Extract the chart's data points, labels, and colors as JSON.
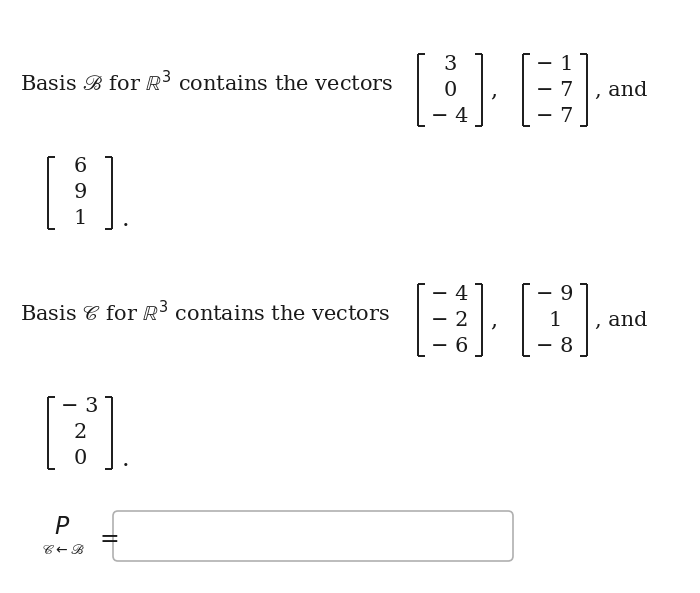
{
  "background_color": "#ffffff",
  "text_color": "#1a1a1a",
  "basis_B_vec1": [
    "− 4",
    "0",
    "3"
  ],
  "basis_B_vec2": [
    "− 7",
    "− 7",
    "− 1"
  ],
  "basis_B_vec3": [
    "1",
    "9",
    "6"
  ],
  "basis_C_vec1": [
    "− 6",
    "− 2",
    "− 4"
  ],
  "basis_C_vec2": [
    "− 8",
    "1",
    "− 9"
  ],
  "basis_C_vec3": [
    "0",
    "2",
    "− 3"
  ],
  "font_size_main": 15,
  "font_size_matrix": 15,
  "figwidth": 7.0,
  "figheight": 5.93,
  "dpi": 100
}
